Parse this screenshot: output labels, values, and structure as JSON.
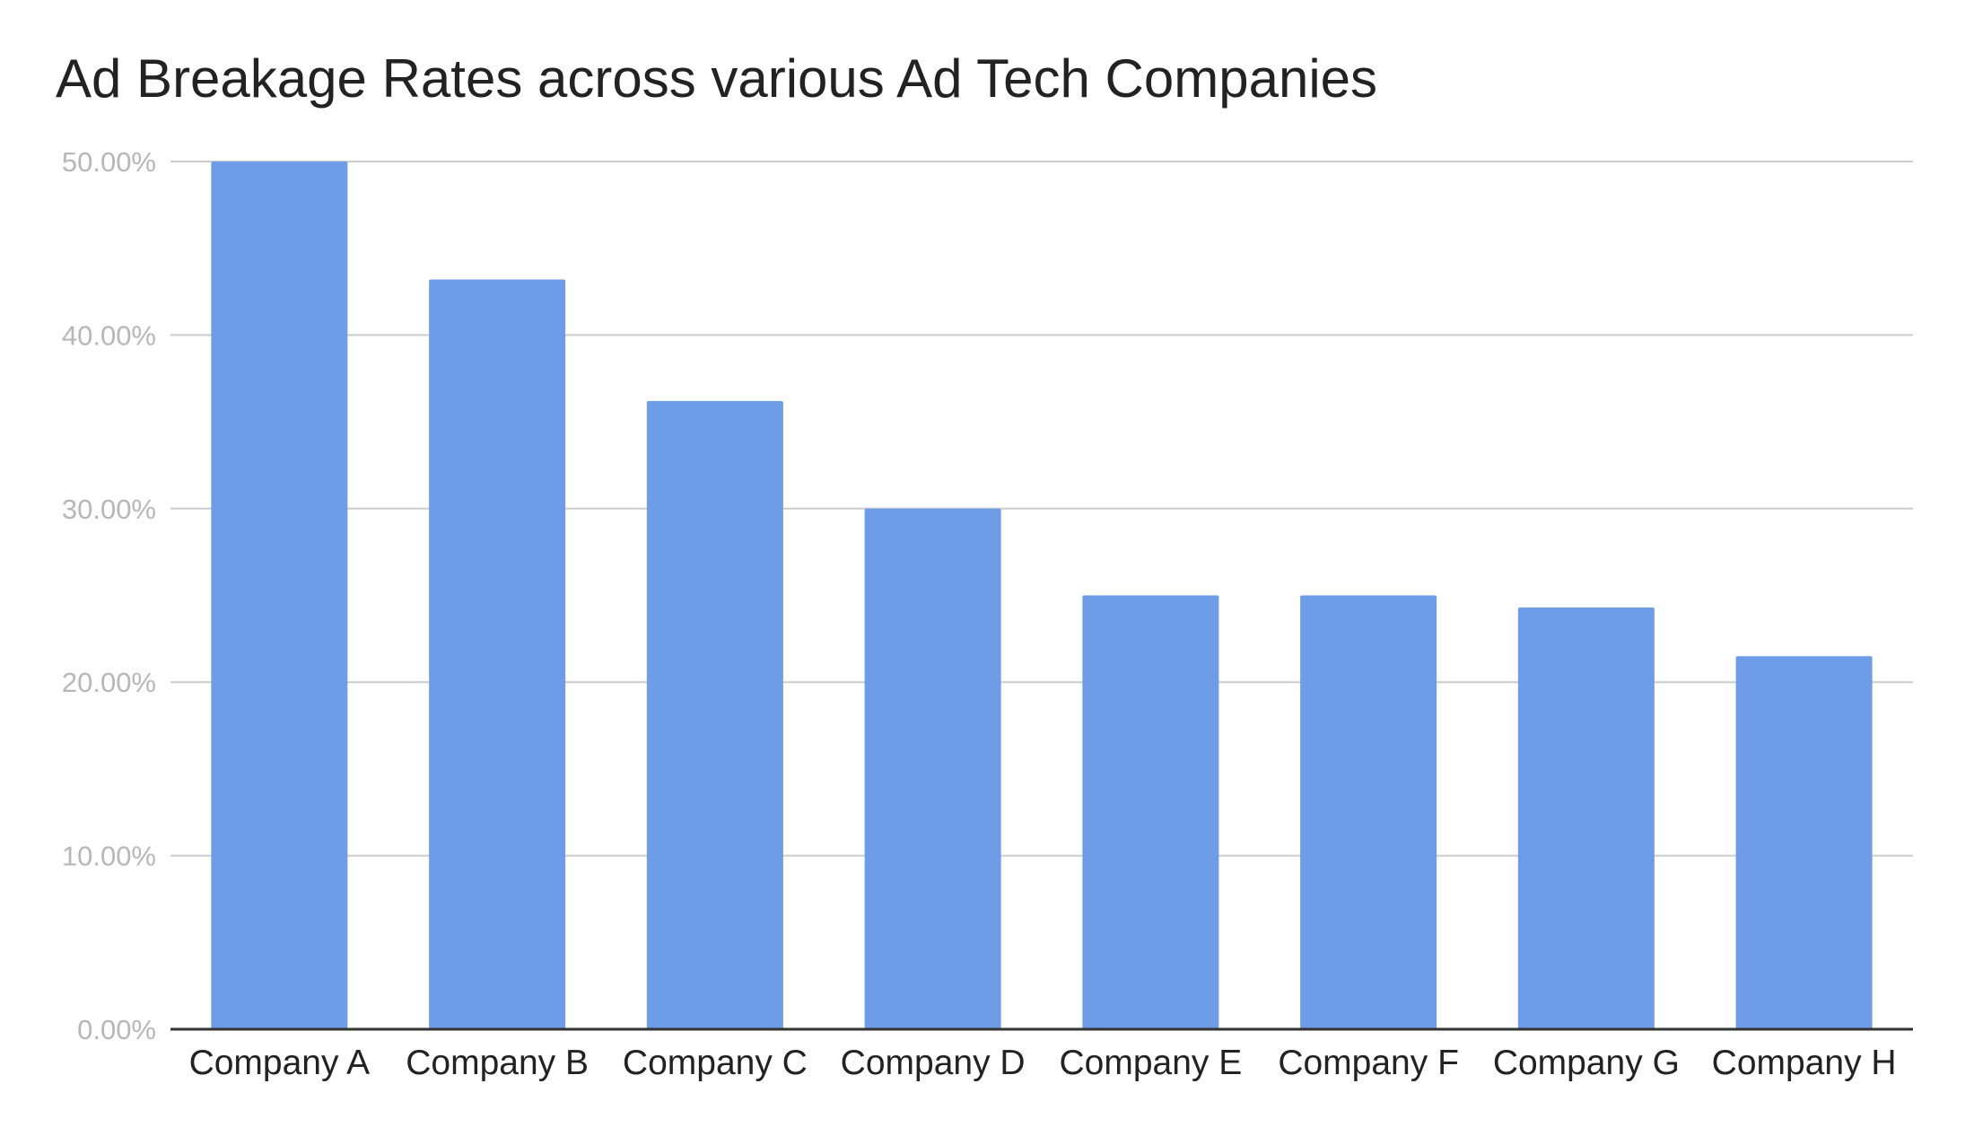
{
  "chart_data": {
    "type": "bar",
    "title": "Ad Breakage Rates across various Ad Tech Companies",
    "xlabel": "",
    "ylabel": "",
    "categories": [
      "Company A",
      "Company B",
      "Company C",
      "Company D",
      "Company E",
      "Company F",
      "Company G",
      "Company H"
    ],
    "values": [
      50.0,
      43.2,
      36.2,
      30.0,
      25.0,
      25.0,
      24.3,
      21.5
    ],
    "ylim": [
      0,
      50
    ],
    "yticks": [
      0,
      10,
      20,
      30,
      40,
      50
    ],
    "ytick_labels": [
      "0.00%",
      "10.00%",
      "20.00%",
      "30.00%",
      "40.00%",
      "50.00%"
    ],
    "grid": true,
    "legend": "none",
    "bar_color": "#6f9ce6",
    "grid_color": "#cccccc",
    "axis_color": "#333333"
  }
}
